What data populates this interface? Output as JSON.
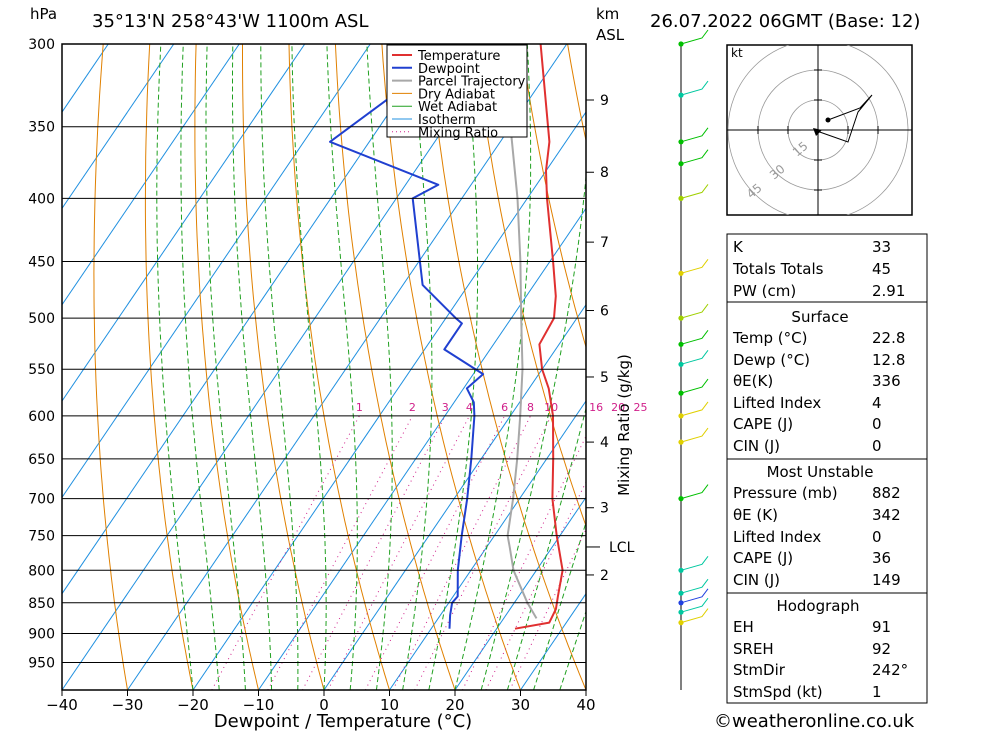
{
  "header": {
    "pressure_unit": "hPa",
    "location": "35°13'N  258°43'W  1100m  ASL",
    "km_label": "km",
    "asl_label": "ASL",
    "datetime": "26.07.2022  06GMT  (Base: 12)"
  },
  "chart_data": {
    "type": "line",
    "subtype": "skew-T log-P sounding",
    "xlabel": "Dewpoint / Temperature (°C)",
    "ylabel": "hPa",
    "secondary_ylabel": "Mixing Ratio (g/kg)",
    "xlim": [
      -40,
      40
    ],
    "ylim": [
      1000,
      300
    ],
    "x_ticks": [
      -40,
      -30,
      -20,
      -10,
      0,
      10,
      20,
      30,
      40
    ],
    "pressure_ticks": [
      300,
      350,
      400,
      450,
      500,
      550,
      600,
      650,
      700,
      750,
      800,
      850,
      900,
      950
    ],
    "km_ticks": [
      {
        "km": 2,
        "p": 807
      },
      {
        "km": 3,
        "p": 712
      },
      {
        "km": 4,
        "p": 630
      },
      {
        "km": 5,
        "p": 558
      },
      {
        "km": 6,
        "p": 493
      },
      {
        "km": 7,
        "p": 434
      },
      {
        "km": 8,
        "p": 381
      },
      {
        "km": 9,
        "p": 333
      }
    ],
    "lcl": {
      "label": "LCL",
      "p": 766
    },
    "mixing_ratio_labels": [
      "1",
      "2",
      "3",
      "4",
      "6",
      "8",
      "10",
      "16",
      "20",
      "25"
    ],
    "legend": [
      "Temperature",
      "Dewpoint",
      "Parcel Trajectory",
      "Dry Adiabat",
      "Wet Adiabat",
      "Isotherm",
      "Mixing Ratio"
    ],
    "colors": {
      "temperature": "#e03030",
      "dewpoint": "#2040d0",
      "parcel": "#a8a8a8",
      "dry_adiabat": "#e08000",
      "wet_adiabat": "#20a020",
      "isotherm": "#2090e0",
      "mixing_ratio": "#d0208a"
    },
    "temperature": [
      {
        "p": 892,
        "t": 22.8
      },
      {
        "p": 882,
        "t": 27.4
      },
      {
        "p": 860,
        "t": 27.0
      },
      {
        "p": 840,
        "t": 26.0
      },
      {
        "p": 800,
        "t": 24.0
      },
      {
        "p": 750,
        "t": 19.5
      },
      {
        "p": 700,
        "t": 15.0
      },
      {
        "p": 650,
        "t": 11.0
      },
      {
        "p": 600,
        "t": 6.5
      },
      {
        "p": 570,
        "t": 3.0
      },
      {
        "p": 550,
        "t": 0.0
      },
      {
        "p": 525,
        "t": -3.0
      },
      {
        "p": 500,
        "t": -3.5
      },
      {
        "p": 480,
        "t": -5.5
      },
      {
        "p": 450,
        "t": -9.5
      },
      {
        "p": 400,
        "t": -17.0
      },
      {
        "p": 380,
        "t": -20.0
      },
      {
        "p": 360,
        "t": -22.5
      },
      {
        "p": 300,
        "t": -34.0
      }
    ],
    "dewpoint": [
      {
        "p": 892,
        "t": 12.8
      },
      {
        "p": 870,
        "t": 11.5
      },
      {
        "p": 850,
        "t": 10.5
      },
      {
        "p": 840,
        "t": 10.7
      },
      {
        "p": 800,
        "t": 8.0
      },
      {
        "p": 750,
        "t": 5.0
      },
      {
        "p": 700,
        "t": 2.0
      },
      {
        "p": 650,
        "t": -1.5
      },
      {
        "p": 600,
        "t": -5.5
      },
      {
        "p": 585,
        "t": -7.0
      },
      {
        "p": 570,
        "t": -9.5
      },
      {
        "p": 555,
        "t": -8.5
      },
      {
        "p": 530,
        "t": -17.0
      },
      {
        "p": 505,
        "t": -17.0
      },
      {
        "p": 500,
        "t": -18.5
      },
      {
        "p": 470,
        "t": -27.0
      },
      {
        "p": 400,
        "t": -37.5
      },
      {
        "p": 390,
        "t": -35.0
      },
      {
        "p": 360,
        "t": -56.0
      },
      {
        "p": 320,
        "t": -49.5
      },
      {
        "p": 315,
        "t": -54.0
      },
      {
        "p": 300,
        "t": -51.0
      }
    ],
    "parcel": [
      {
        "p": 875,
        "t": 25.0
      },
      {
        "p": 850,
        "t": 22.0
      },
      {
        "p": 800,
        "t": 16.5
      },
      {
        "p": 766,
        "t": 13.5
      },
      {
        "p": 750,
        "t": 12.0
      },
      {
        "p": 700,
        "t": 9.0
      },
      {
        "p": 650,
        "t": 5.5
      },
      {
        "p": 600,
        "t": 1.5
      },
      {
        "p": 550,
        "t": -3.0
      },
      {
        "p": 500,
        "t": -8.5
      },
      {
        "p": 450,
        "t": -14.5
      },
      {
        "p": 400,
        "t": -21.5
      },
      {
        "p": 350,
        "t": -30.0
      },
      {
        "p": 300,
        "t": -41.0
      }
    ],
    "wind_profile": [
      {
        "p": 300,
        "color": "#00c000"
      },
      {
        "p": 330,
        "color": "#00c8a0"
      },
      {
        "p": 360,
        "color": "#00c000"
      },
      {
        "p": 375,
        "color": "#00c000"
      },
      {
        "p": 400,
        "color": "#a0d000"
      },
      {
        "p": 460,
        "color": "#e0d000"
      },
      {
        "p": 500,
        "color": "#a0d000"
      },
      {
        "p": 525,
        "color": "#00c000"
      },
      {
        "p": 545,
        "color": "#00c8a0"
      },
      {
        "p": 575,
        "color": "#00c000"
      },
      {
        "p": 600,
        "color": "#e0d000"
      },
      {
        "p": 630,
        "color": "#e0d000"
      },
      {
        "p": 700,
        "color": "#00c000"
      },
      {
        "p": 800,
        "color": "#00c8a0"
      },
      {
        "p": 835,
        "color": "#00c8a0"
      },
      {
        "p": 850,
        "color": "#2040e0"
      },
      {
        "p": 865,
        "color": "#00c8a0"
      },
      {
        "p": 882,
        "color": "#e0d000"
      }
    ]
  },
  "hodograph": {
    "unit_label": "kt",
    "ring_labels": [
      "15",
      "30",
      "45"
    ]
  },
  "indices": {
    "basic": [
      {
        "label": "K",
        "value": "33"
      },
      {
        "label": "Totals Totals",
        "value": "45"
      },
      {
        "label": "PW (cm)",
        "value": "2.91"
      }
    ],
    "surface": {
      "title": "Surface",
      "rows": [
        {
          "label": "Temp (°C)",
          "value": "22.8"
        },
        {
          "label": "Dewp (°C)",
          "value": "12.8"
        },
        {
          "label": "θE(K)",
          "value": "336"
        },
        {
          "label": "Lifted Index",
          "value": "4"
        },
        {
          "label": "CAPE (J)",
          "value": "0"
        },
        {
          "label": "CIN (J)",
          "value": "0"
        }
      ]
    },
    "most_unstable": {
      "title": "Most Unstable",
      "rows": [
        {
          "label": "Pressure (mb)",
          "value": "882"
        },
        {
          "label": "θE (K)",
          "value": "342"
        },
        {
          "label": "Lifted Index",
          "value": "0"
        },
        {
          "label": "CAPE (J)",
          "value": "36"
        },
        {
          "label": "CIN (J)",
          "value": "149"
        }
      ]
    },
    "hodograph_params": {
      "title": "Hodograph",
      "rows": [
        {
          "label": "EH",
          "value": "91"
        },
        {
          "label": "SREH",
          "value": "92"
        },
        {
          "label": "StmDir",
          "value": "242°"
        },
        {
          "label": "StmSpd (kt)",
          "value": "1"
        }
      ]
    }
  },
  "footer": {
    "copyright": "©weatheronline.co.uk"
  }
}
